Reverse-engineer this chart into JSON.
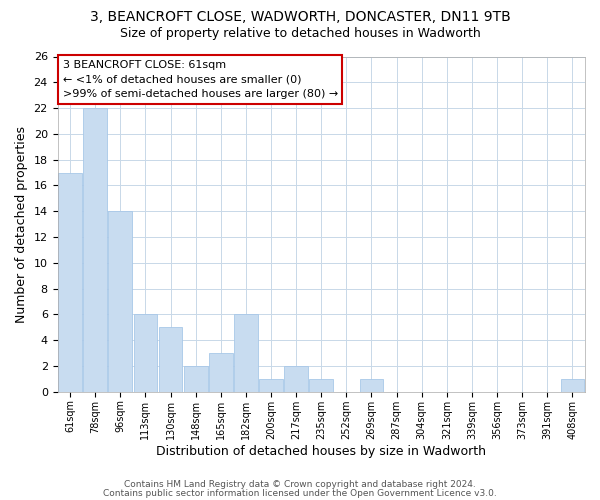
{
  "title": "3, BEANCROFT CLOSE, WADWORTH, DONCASTER, DN11 9TB",
  "subtitle": "Size of property relative to detached houses in Wadworth",
  "xlabel": "Distribution of detached houses by size in Wadworth",
  "ylabel": "Number of detached properties",
  "bar_color": "#c8dcf0",
  "bar_edge_color": "#a8c8e8",
  "bins": [
    "61sqm",
    "78sqm",
    "96sqm",
    "113sqm",
    "130sqm",
    "148sqm",
    "165sqm",
    "182sqm",
    "200sqm",
    "217sqm",
    "235sqm",
    "252sqm",
    "269sqm",
    "287sqm",
    "304sqm",
    "321sqm",
    "339sqm",
    "356sqm",
    "373sqm",
    "391sqm",
    "408sqm"
  ],
  "values": [
    17,
    22,
    14,
    6,
    5,
    2,
    3,
    6,
    1,
    2,
    1,
    0,
    1,
    0,
    0,
    0,
    0,
    0,
    0,
    0,
    1
  ],
  "ylim": [
    0,
    26
  ],
  "yticks": [
    0,
    2,
    4,
    6,
    8,
    10,
    12,
    14,
    16,
    18,
    20,
    22,
    24,
    26
  ],
  "annotation_title": "3 BEANCROFT CLOSE: 61sqm",
  "annotation_line1": "← <1% of detached houses are smaller (0)",
  "annotation_line2": ">99% of semi-detached houses are larger (80) →",
  "annotation_box_color": "#ffffff",
  "annotation_box_edge": "#cc0000",
  "footer_line1": "Contains HM Land Registry data © Crown copyright and database right 2024.",
  "footer_line2": "Contains public sector information licensed under the Open Government Licence v3.0.",
  "background_color": "#ffffff",
  "grid_color": "#c8d8e8"
}
